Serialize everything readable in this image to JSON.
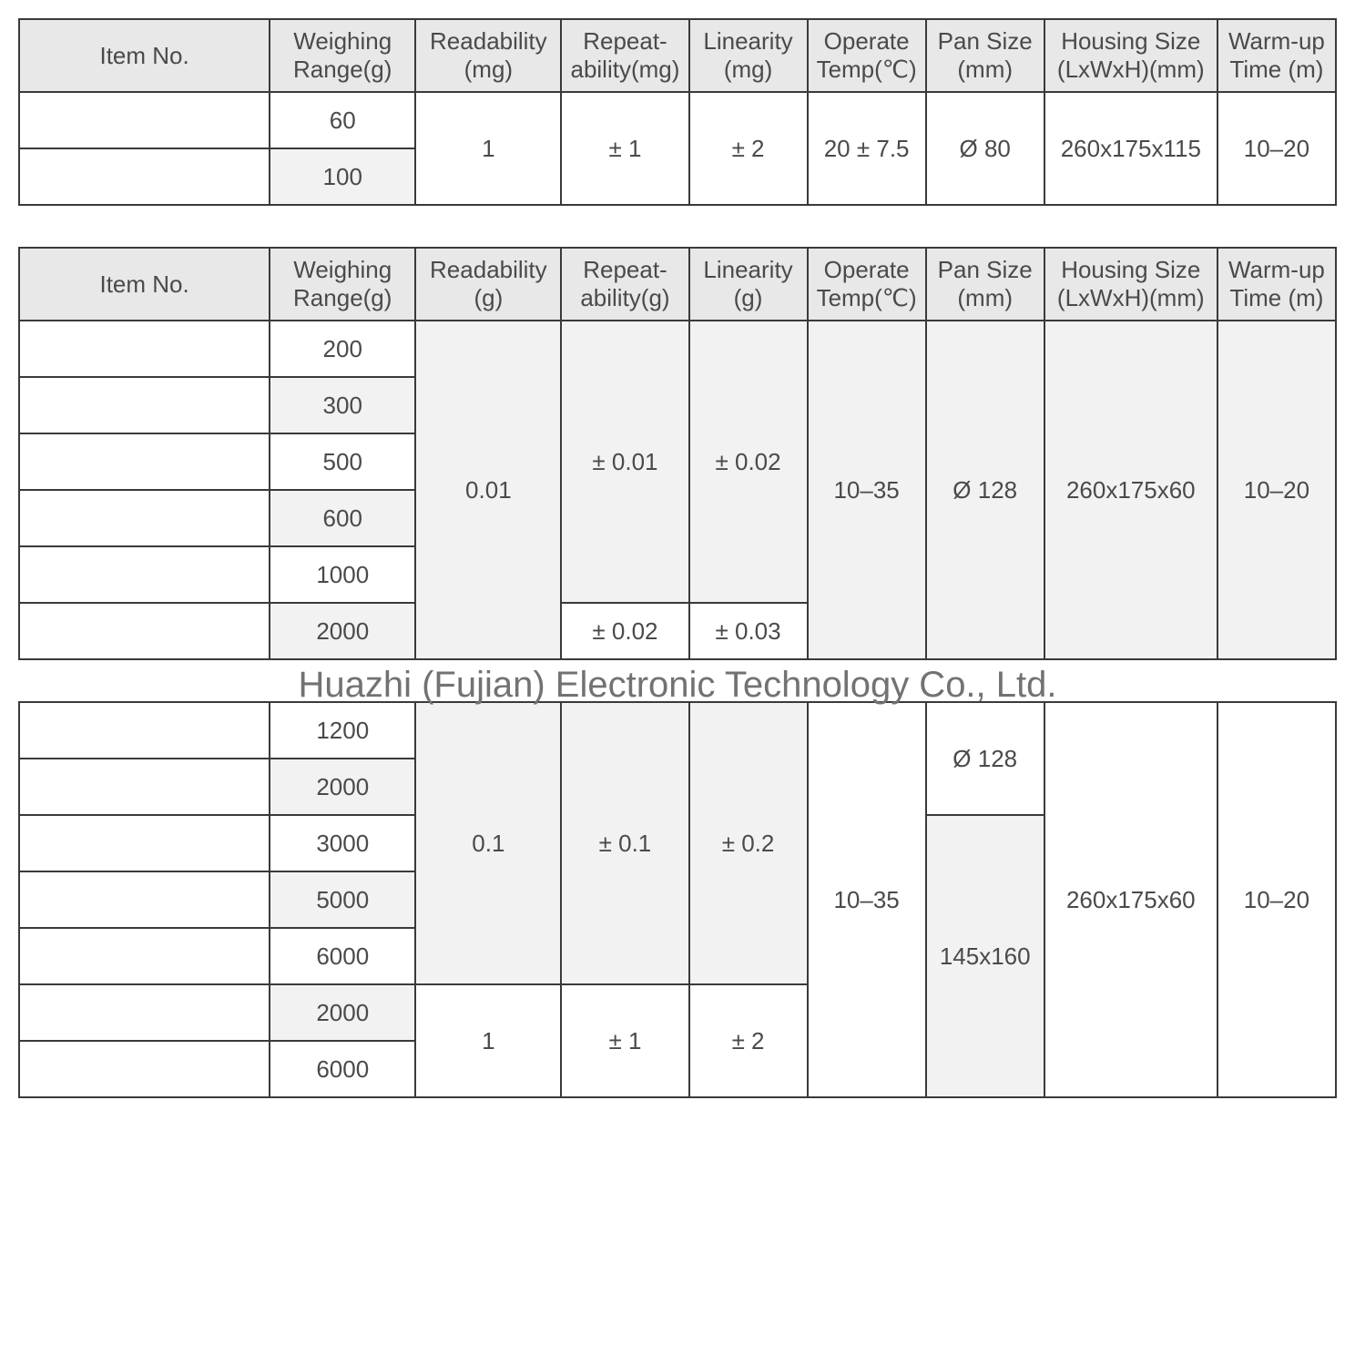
{
  "watermark": "Huazhi (Fujian) Electronic Technology Co., Ltd.",
  "headers": {
    "item_no": "Item No.",
    "weighing_range": "Weighing Range(g)",
    "readability_mg": "Readability (mg)",
    "readability_g": "Readability (g)",
    "repeatability_mg": "Repeat-ability(mg)",
    "repeatability_g": "Repeat-ability(g)",
    "linearity_mg": "Linearity (mg)",
    "linearity_g": "Linearity (g)",
    "operate_temp": "Operate Temp(℃)",
    "pan_size": "Pan Size (mm)",
    "housing_size": "Housing Size (LxWxH)(mm)",
    "warmup_time": "Warm-up Time (m)"
  },
  "table1": {
    "rows": [
      {
        "item": "",
        "wr": "60"
      },
      {
        "item": "",
        "wr": "100"
      }
    ],
    "readability": "1",
    "repeatability": "± 1",
    "linearity": "± 2",
    "operate_temp": "20 ± 7.5",
    "pan_size": "Ø 80",
    "housing_size": "260x175x115",
    "warmup": "10–20"
  },
  "table2": {
    "rows": [
      {
        "item": "",
        "wr": "200"
      },
      {
        "item": "",
        "wr": "300"
      },
      {
        "item": "",
        "wr": "500"
      },
      {
        "item": "",
        "wr": "600"
      },
      {
        "item": "",
        "wr": "1000"
      },
      {
        "item": "",
        "wr": "2000"
      }
    ],
    "readability": "0.01",
    "repeat_a": "± 0.01",
    "repeat_b": "± 0.02",
    "linearity_a": "± 0.02",
    "linearity_b": "± 0.03",
    "operate_temp": "10–35",
    "pan_size": "Ø 128",
    "housing_size": "260x175x60",
    "warmup": "10–20"
  },
  "table3": {
    "rows": [
      {
        "item": "",
        "wr": "1200"
      },
      {
        "item": "",
        "wr": "2000"
      },
      {
        "item": "",
        "wr": "3000"
      },
      {
        "item": "",
        "wr": "5000"
      },
      {
        "item": "",
        "wr": "6000"
      },
      {
        "item": "",
        "wr": "2000"
      },
      {
        "item": "",
        "wr": "6000"
      }
    ],
    "readability_a": "0.1",
    "readability_b": "1",
    "repeat_a": "± 0.1",
    "repeat_b": "± 1",
    "linearity_a": "± 0.2",
    "linearity_b": "± 2",
    "operate_temp": "10–35",
    "pan_size_a": "Ø 128",
    "pan_size_b": "145x160",
    "housing_size": "260x175x60",
    "warmup": "10–20"
  },
  "style": {
    "border_color": "#3a3a3a",
    "header_bg": "#e8e8e8",
    "shade_bg": "#f2f2f2",
    "cell_bg": "#ffffff",
    "text_color": "#4a4a4a",
    "watermark_color": "#727272",
    "font_size_cell": 26,
    "font_size_watermark": 40,
    "border_width": 2
  }
}
